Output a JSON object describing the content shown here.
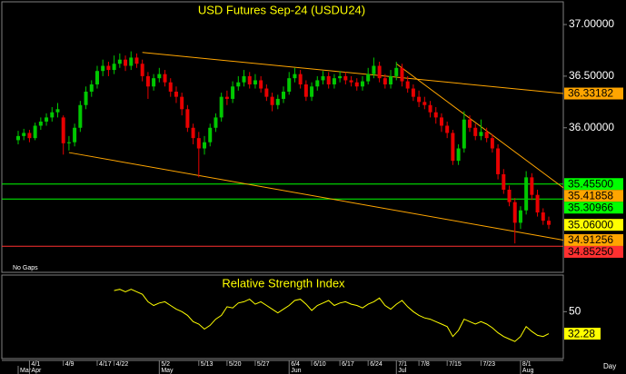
{
  "chart_data": {
    "type": "candlestick",
    "title": "USD Futures Sep-24 (USDU24)",
    "note": "No Gaps",
    "x_unit": "Day",
    "up_color": "#00c800",
    "down_color": "#e80000",
    "categories": [
      null,
      null,
      "4/1",
      null,
      null,
      null,
      null,
      null,
      "4/9",
      null,
      null,
      null,
      null,
      null,
      "4/17",
      null,
      null,
      "4/22",
      null,
      null,
      null,
      null,
      null,
      null,
      null,
      "5/2",
      null,
      null,
      null,
      null,
      null,
      null,
      "5/13",
      null,
      null,
      null,
      null,
      "5/20",
      null,
      null,
      null,
      null,
      "5/27",
      null,
      null,
      null,
      null,
      null,
      "6/4",
      null,
      null,
      null,
      "6/10",
      null,
      null,
      null,
      null,
      "6/17",
      null,
      null,
      null,
      null,
      "6/24",
      null,
      null,
      null,
      null,
      "7/1",
      null,
      null,
      null,
      "7/8",
      null,
      null,
      null,
      null,
      "7/15",
      null,
      null,
      null,
      null,
      null,
      "7/23",
      null,
      null,
      null,
      null,
      null,
      null,
      "8/1",
      null,
      null,
      null,
      null,
      null
    ],
    "month_categories": [
      "Mar",
      null,
      "Apr",
      null,
      null,
      null,
      null,
      null,
      null,
      null,
      null,
      null,
      null,
      null,
      null,
      null,
      null,
      null,
      null,
      null,
      null,
      null,
      null,
      null,
      null,
      "May",
      null,
      null,
      null,
      null,
      null,
      null,
      null,
      null,
      null,
      null,
      null,
      null,
      null,
      null,
      null,
      null,
      null,
      null,
      null,
      null,
      null,
      null,
      "Jun",
      null,
      null,
      null,
      null,
      null,
      null,
      null,
      null,
      null,
      null,
      null,
      null,
      null,
      null,
      null,
      null,
      null,
      null,
      "Jul",
      null,
      null,
      null,
      null,
      null,
      null,
      null,
      null,
      null,
      null,
      null,
      null,
      null,
      null,
      null,
      null,
      null,
      null,
      null,
      null,
      null,
      "Aug",
      null,
      null,
      null,
      null,
      null
    ],
    "ohlc": [
      [
        35.88,
        35.97,
        35.84,
        35.92
      ],
      [
        35.92,
        35.99,
        35.88,
        35.95
      ],
      [
        35.95,
        35.98,
        35.86,
        35.9
      ],
      [
        35.9,
        36.05,
        35.88,
        36.02
      ],
      [
        36.02,
        36.1,
        35.98,
        36.06
      ],
      [
        36.06,
        36.14,
        36.02,
        36.1
      ],
      [
        36.1,
        36.2,
        36.06,
        36.15
      ],
      [
        36.15,
        36.24,
        36.1,
        36.18
      ],
      [
        36.1,
        36.12,
        35.74,
        35.85
      ],
      [
        35.85,
        35.92,
        35.78,
        35.86
      ],
      [
        35.86,
        36.04,
        35.82,
        36.0
      ],
      [
        36.0,
        36.26,
        35.96,
        36.22
      ],
      [
        36.22,
        36.4,
        36.18,
        36.35
      ],
      [
        36.35,
        36.46,
        36.3,
        36.42
      ],
      [
        36.42,
        36.6,
        36.38,
        36.55
      ],
      [
        36.55,
        36.66,
        36.5,
        36.6
      ],
      [
        36.6,
        36.64,
        36.5,
        36.56
      ],
      [
        36.56,
        36.7,
        36.52,
        36.62
      ],
      [
        36.62,
        36.72,
        36.58,
        36.66
      ],
      [
        36.66,
        36.7,
        36.55,
        36.6
      ],
      [
        36.6,
        36.74,
        36.56,
        36.68
      ],
      [
        36.68,
        36.72,
        36.58,
        36.62
      ],
      [
        36.62,
        36.66,
        36.45,
        36.5
      ],
      [
        36.5,
        36.54,
        36.28,
        36.4
      ],
      [
        36.4,
        36.52,
        36.36,
        36.48
      ],
      [
        36.48,
        36.58,
        36.44,
        36.52
      ],
      [
        36.52,
        36.56,
        36.4,
        36.44
      ],
      [
        36.44,
        36.48,
        36.3,
        36.35
      ],
      [
        36.35,
        36.4,
        36.24,
        36.3
      ],
      [
        36.3,
        36.34,
        36.12,
        36.18
      ],
      [
        36.18,
        36.22,
        35.96,
        36.0
      ],
      [
        36.0,
        36.04,
        35.84,
        35.9
      ],
      [
        35.9,
        35.96,
        35.52,
        35.8
      ],
      [
        35.8,
        35.92,
        35.74,
        35.86
      ],
      [
        35.86,
        36.04,
        35.82,
        36.0
      ],
      [
        36.0,
        36.14,
        35.96,
        36.1
      ],
      [
        36.1,
        36.34,
        36.06,
        36.3
      ],
      [
        36.3,
        36.36,
        36.22,
        36.28
      ],
      [
        36.28,
        36.45,
        36.24,
        36.4
      ],
      [
        36.4,
        36.5,
        36.36,
        36.44
      ],
      [
        36.44,
        36.56,
        36.4,
        36.5
      ],
      [
        36.5,
        36.54,
        36.38,
        36.42
      ],
      [
        36.42,
        36.52,
        36.38,
        36.46
      ],
      [
        36.46,
        36.5,
        36.34,
        36.38
      ],
      [
        36.38,
        36.42,
        36.26,
        36.3
      ],
      [
        36.3,
        36.34,
        36.16,
        36.22
      ],
      [
        36.22,
        36.32,
        36.18,
        36.28
      ],
      [
        36.28,
        36.4,
        36.24,
        36.35
      ],
      [
        36.35,
        36.54,
        36.32,
        36.48
      ],
      [
        36.48,
        36.58,
        36.44,
        36.52
      ],
      [
        36.52,
        36.56,
        36.38,
        36.42
      ],
      [
        36.42,
        36.46,
        36.26,
        36.3
      ],
      [
        36.3,
        36.44,
        36.26,
        36.4
      ],
      [
        36.4,
        36.5,
        36.36,
        36.46
      ],
      [
        36.46,
        36.55,
        36.42,
        36.5
      ],
      [
        36.5,
        36.54,
        36.38,
        36.42
      ],
      [
        36.42,
        36.52,
        36.38,
        36.48
      ],
      [
        36.48,
        36.55,
        36.44,
        36.5
      ],
      [
        36.5,
        36.54,
        36.42,
        36.46
      ],
      [
        36.46,
        36.5,
        36.4,
        36.44
      ],
      [
        36.44,
        36.48,
        36.36,
        36.4
      ],
      [
        36.4,
        36.5,
        36.36,
        36.45
      ],
      [
        36.45,
        36.58,
        36.42,
        36.52
      ],
      [
        36.52,
        36.68,
        36.48,
        36.6
      ],
      [
        36.6,
        36.64,
        36.44,
        36.48
      ],
      [
        36.48,
        36.52,
        36.38,
        36.42
      ],
      [
        36.42,
        36.56,
        36.38,
        36.5
      ],
      [
        36.5,
        36.64,
        36.46,
        36.58
      ],
      [
        36.58,
        36.62,
        36.4,
        36.45
      ],
      [
        36.45,
        36.5,
        36.34,
        36.38
      ],
      [
        36.38,
        36.42,
        36.26,
        36.3
      ],
      [
        36.3,
        36.36,
        36.2,
        36.25
      ],
      [
        36.25,
        36.3,
        36.18,
        36.22
      ],
      [
        36.22,
        36.26,
        36.1,
        36.15
      ],
      [
        36.15,
        36.2,
        36.04,
        36.1
      ],
      [
        36.1,
        36.14,
        35.96,
        36.02
      ],
      [
        36.02,
        36.06,
        35.9,
        35.95
      ],
      [
        35.95,
        35.98,
        35.64,
        35.68
      ],
      [
        35.68,
        35.84,
        35.64,
        35.8
      ],
      [
        35.8,
        36.16,
        35.76,
        36.08
      ],
      [
        36.08,
        36.12,
        35.96,
        36.0
      ],
      [
        36.0,
        36.04,
        35.88,
        35.92
      ],
      [
        35.92,
        36.08,
        35.88,
        35.96
      ],
      [
        35.96,
        36.0,
        35.86,
        35.9
      ],
      [
        35.9,
        35.94,
        35.76,
        35.8
      ],
      [
        35.8,
        35.84,
        35.5,
        35.55
      ],
      [
        35.55,
        35.6,
        35.36,
        35.4
      ],
      [
        35.4,
        35.44,
        35.24,
        35.28
      ],
      [
        35.28,
        35.32,
        34.88,
        35.08
      ],
      [
        35.08,
        35.24,
        35.02,
        35.2
      ],
      [
        35.2,
        35.58,
        35.16,
        35.52
      ],
      [
        35.52,
        35.56,
        35.3,
        35.35
      ],
      [
        35.35,
        35.4,
        35.14,
        35.18
      ],
      [
        35.18,
        35.22,
        35.06,
        35.1
      ],
      [
        35.1,
        35.14,
        35.02,
        35.06
      ]
    ],
    "ylim": [
      34.6,
      37.22
    ],
    "yticks": [
      {
        "value": 37,
        "label": "37.00000"
      },
      {
        "value": 36.5,
        "label": "36.50000"
      },
      {
        "value": 36,
        "label": "36.00000"
      }
    ],
    "price_tags": [
      {
        "value": 36.33182,
        "label": "36.33182",
        "color": "#ffa500",
        "line": false
      },
      {
        "value": 35.455,
        "label": "35.45500",
        "color": "#00ff00",
        "line": true
      },
      {
        "value": 35.41858,
        "label": "35.41858",
        "color": "#ffa500",
        "line": false
      },
      {
        "value": 35.30966,
        "label": "35.30966",
        "color": "#00ff00",
        "line": true
      },
      {
        "value": 35.06,
        "label": "35.06000",
        "color": "#ffff00",
        "line": false
      },
      {
        "value": 34.91256,
        "label": "34.91256",
        "color": "#ffa500",
        "line": false
      },
      {
        "value": 34.8525,
        "label": "34.85250",
        "color": "#ff3030",
        "line": true
      }
    ],
    "trendlines": [
      {
        "start_bar": 22,
        "start_price": 36.73,
        "end_price": 36.33182,
        "color": "#ffa500"
      },
      {
        "start_bar": 9,
        "start_price": 35.76,
        "end_price": 34.91256,
        "color": "#ffa500"
      },
      {
        "start_bar": 67,
        "start_price": 36.62,
        "end_price": 35.41858,
        "color": "#ffa500"
      }
    ],
    "rsi": {
      "title": "Relative Strength Index",
      "color": "#ffff00",
      "ylim": [
        13,
        78
      ],
      "yticks": [
        50
      ],
      "values": [
        null,
        null,
        null,
        null,
        null,
        null,
        null,
        null,
        null,
        null,
        null,
        null,
        null,
        null,
        null,
        null,
        null,
        67,
        68,
        66,
        68,
        66,
        64,
        58,
        55,
        57,
        58,
        55,
        52,
        50,
        47,
        42,
        40,
        36,
        39,
        44,
        47,
        54,
        53,
        57,
        58,
        60,
        56,
        58,
        55,
        52,
        49,
        52,
        55,
        59,
        60,
        56,
        51,
        55,
        57,
        59,
        55,
        57,
        58,
        56,
        55,
        53,
        56,
        58,
        61,
        55,
        52,
        56,
        59,
        54,
        50,
        47,
        45,
        44,
        42,
        40,
        38,
        30,
        35,
        44,
        42,
        40,
        42,
        40,
        37,
        33,
        30,
        28,
        26,
        30,
        38,
        34,
        31,
        30,
        32.28
      ]
    }
  }
}
